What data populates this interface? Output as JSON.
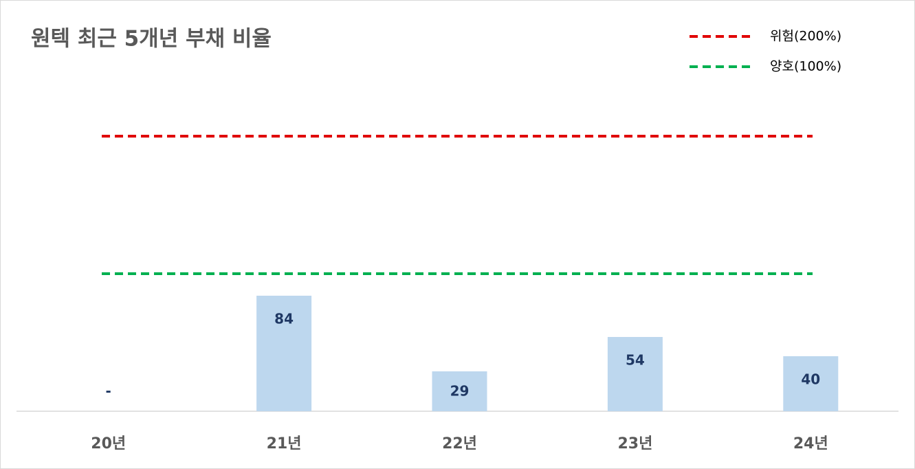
{
  "chart_data": {
    "type": "bar",
    "title": "원텍 최근 5개년 부채 비율",
    "categories": [
      "20년",
      "21년",
      "22년",
      "23년",
      "24년"
    ],
    "values": [
      0,
      84,
      29,
      54,
      40
    ],
    "value_labels": [
      "-",
      "84",
      "29",
      "54",
      "40"
    ],
    "color": "#bdd7ee",
    "ylim": [
      0,
      230
    ],
    "reference_lines": [
      {
        "name": "위험(200%)",
        "value": 200,
        "color": "#e00000"
      },
      {
        "name": "양호(100%)",
        "value": 100,
        "color": "#00b050"
      }
    ],
    "legend": "top-right"
  }
}
